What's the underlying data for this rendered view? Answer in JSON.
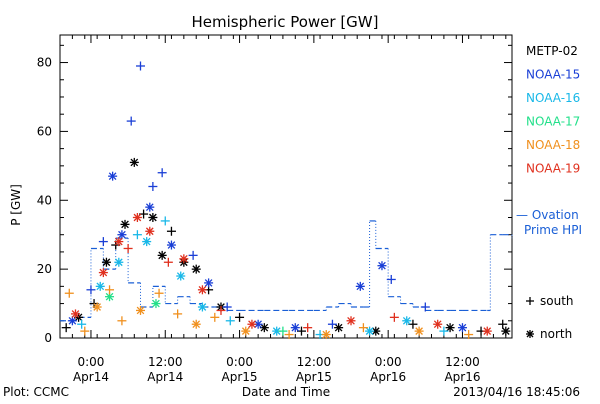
{
  "chart_data": {
    "type": "scatter",
    "title": "Hemispheric Power [GW]",
    "ylabel": "P [GW]",
    "xlabel": "Date and Time",
    "ylim": [
      0,
      88
    ],
    "y_ticks": [
      0,
      20,
      40,
      60,
      80
    ],
    "xlim": [
      "2013-04-13 19:00",
      "2013-04-16 20:00"
    ],
    "x_ticks": [
      {
        "x": "2013-04-14 00:00",
        "time": "0:00",
        "date": "Apr14"
      },
      {
        "x": "2013-04-14 12:00",
        "time": "12:00",
        "date": "Apr14"
      },
      {
        "x": "2013-04-15 00:00",
        "time": "0:00",
        "date": "Apr15"
      },
      {
        "x": "2013-04-15 12:00",
        "time": "12:00",
        "date": "Apr15"
      },
      {
        "x": "2013-04-16 00:00",
        "time": "0:00",
        "date": "Apr16"
      },
      {
        "x": "2013-04-16 12:00",
        "time": "12:00",
        "date": "Apr16"
      }
    ],
    "legend_position": "right",
    "series": [
      {
        "name": "METP-02",
        "color": "#000000",
        "points": [
          {
            "x": "2013-04-13 20:00",
            "y": 3,
            "m": "south"
          },
          {
            "x": "2013-04-13 22:00",
            "y": 6,
            "m": "north"
          },
          {
            "x": "2013-04-14 00:30",
            "y": 10,
            "m": "south"
          },
          {
            "x": "2013-04-14 02:30",
            "y": 22,
            "m": "north"
          },
          {
            "x": "2013-04-14 04:00",
            "y": 27,
            "m": "south"
          },
          {
            "x": "2013-04-14 05:30",
            "y": 33,
            "m": "north"
          },
          {
            "x": "2013-04-14 07:00",
            "y": 51,
            "m": "north"
          },
          {
            "x": "2013-04-14 08:30",
            "y": 36,
            "m": "south"
          },
          {
            "x": "2013-04-14 10:00",
            "y": 35,
            "m": "north"
          },
          {
            "x": "2013-04-14 11:30",
            "y": 24,
            "m": "north"
          },
          {
            "x": "2013-04-14 13:00",
            "y": 31,
            "m": "south"
          },
          {
            "x": "2013-04-14 15:00",
            "y": 22,
            "m": "north"
          },
          {
            "x": "2013-04-14 17:00",
            "y": 20,
            "m": "north"
          },
          {
            "x": "2013-04-14 19:00",
            "y": 14,
            "m": "south"
          },
          {
            "x": "2013-04-14 21:00",
            "y": 9,
            "m": "north"
          },
          {
            "x": "2013-04-15 00:00",
            "y": 6,
            "m": "south"
          },
          {
            "x": "2013-04-15 04:00",
            "y": 3,
            "m": "north"
          },
          {
            "x": "2013-04-15 10:00",
            "y": 2,
            "m": "south"
          },
          {
            "x": "2013-04-15 16:00",
            "y": 3,
            "m": "north"
          },
          {
            "x": "2013-04-15 22:00",
            "y": 2,
            "m": "north"
          },
          {
            "x": "2013-04-16 04:00",
            "y": 4,
            "m": "south"
          },
          {
            "x": "2013-04-16 10:00",
            "y": 3,
            "m": "north"
          },
          {
            "x": "2013-04-16 15:00",
            "y": 2,
            "m": "south"
          },
          {
            "x": "2013-04-16 18:30",
            "y": 4,
            "m": "south"
          },
          {
            "x": "2013-04-16 19:00",
            "y": 2,
            "m": "north"
          }
        ]
      },
      {
        "name": "NOAA-15",
        "color": "#1a3fd6",
        "points": [
          {
            "x": "2013-04-13 21:00",
            "y": 5,
            "m": "north"
          },
          {
            "x": "2013-04-14 00:00",
            "y": 14,
            "m": "south"
          },
          {
            "x": "2013-04-14 02:00",
            "y": 28,
            "m": "south"
          },
          {
            "x": "2013-04-14 03:30",
            "y": 47,
            "m": "north"
          },
          {
            "x": "2013-04-14 05:00",
            "y": 30,
            "m": "north"
          },
          {
            "x": "2013-04-14 06:30",
            "y": 63,
            "m": "south"
          },
          {
            "x": "2013-04-14 08:00",
            "y": 79,
            "m": "south"
          },
          {
            "x": "2013-04-14 10:00",
            "y": 44,
            "m": "south"
          },
          {
            "x": "2013-04-14 11:30",
            "y": 48,
            "m": "south"
          },
          {
            "x": "2013-04-14 09:30",
            "y": 38,
            "m": "north"
          },
          {
            "x": "2013-04-14 13:00",
            "y": 27,
            "m": "north"
          },
          {
            "x": "2013-04-14 16:30",
            "y": 24,
            "m": "south"
          },
          {
            "x": "2013-04-14 19:00",
            "y": 16,
            "m": "north"
          },
          {
            "x": "2013-04-14 22:00",
            "y": 9,
            "m": "south"
          },
          {
            "x": "2013-04-15 03:00",
            "y": 4,
            "m": "north"
          },
          {
            "x": "2013-04-15 09:00",
            "y": 3,
            "m": "north"
          },
          {
            "x": "2013-04-15 15:00",
            "y": 4,
            "m": "south"
          },
          {
            "x": "2013-04-15 19:30",
            "y": 15,
            "m": "north"
          },
          {
            "x": "2013-04-15 23:00",
            "y": 21,
            "m": "north"
          },
          {
            "x": "2013-04-16 00:30",
            "y": 17,
            "m": "south"
          },
          {
            "x": "2013-04-16 06:00",
            "y": 9,
            "m": "south"
          },
          {
            "x": "2013-04-16 12:00",
            "y": 3,
            "m": "north"
          }
        ]
      },
      {
        "name": "NOAA-16",
        "color": "#19b8e8",
        "points": [
          {
            "x": "2013-04-13 22:30",
            "y": 4,
            "m": "south"
          },
          {
            "x": "2013-04-14 01:30",
            "y": 15,
            "m": "north"
          },
          {
            "x": "2013-04-14 04:30",
            "y": 22,
            "m": "north"
          },
          {
            "x": "2013-04-14 07:30",
            "y": 30,
            "m": "south"
          },
          {
            "x": "2013-04-14 09:00",
            "y": 28,
            "m": "north"
          },
          {
            "x": "2013-04-14 12:00",
            "y": 34,
            "m": "south"
          },
          {
            "x": "2013-04-14 14:30",
            "y": 18,
            "m": "north"
          },
          {
            "x": "2013-04-14 18:00",
            "y": 9,
            "m": "north"
          },
          {
            "x": "2013-04-14 22:30",
            "y": 5,
            "m": "south"
          },
          {
            "x": "2013-04-15 06:00",
            "y": 2,
            "m": "north"
          },
          {
            "x": "2013-04-15 13:00",
            "y": 1,
            "m": "south"
          },
          {
            "x": "2013-04-15 21:00",
            "y": 2,
            "m": "north"
          },
          {
            "x": "2013-04-16 03:00",
            "y": 5,
            "m": "north"
          },
          {
            "x": "2013-04-16 09:00",
            "y": 2,
            "m": "south"
          }
        ]
      },
      {
        "name": "NOAA-17",
        "color": "#22e08a",
        "points": [
          {
            "x": "2013-04-14 03:00",
            "y": 12,
            "m": "north"
          },
          {
            "x": "2013-04-14 10:30",
            "y": 10,
            "m": "north"
          },
          {
            "x": "2013-04-15 07:00",
            "y": 2,
            "m": "south"
          }
        ]
      },
      {
        "name": "NOAA-18",
        "color": "#f0901e",
        "points": [
          {
            "x": "2013-04-13 20:30",
            "y": 13,
            "m": "south"
          },
          {
            "x": "2013-04-13 23:00",
            "y": 2,
            "m": "south"
          },
          {
            "x": "2013-04-14 01:00",
            "y": 9,
            "m": "north"
          },
          {
            "x": "2013-04-14 03:00",
            "y": 14,
            "m": "south"
          },
          {
            "x": "2013-04-14 05:00",
            "y": 5,
            "m": "south"
          },
          {
            "x": "2013-04-14 08:00",
            "y": 8,
            "m": "north"
          },
          {
            "x": "2013-04-14 11:00",
            "y": 13,
            "m": "south"
          },
          {
            "x": "2013-04-14 14:00",
            "y": 7,
            "m": "south"
          },
          {
            "x": "2013-04-14 17:00",
            "y": 4,
            "m": "north"
          },
          {
            "x": "2013-04-14 20:00",
            "y": 6,
            "m": "south"
          },
          {
            "x": "2013-04-15 01:00",
            "y": 2,
            "m": "north"
          },
          {
            "x": "2013-04-15 08:00",
            "y": 1,
            "m": "south"
          },
          {
            "x": "2013-04-15 14:00",
            "y": 1,
            "m": "north"
          },
          {
            "x": "2013-04-15 20:00",
            "y": 3,
            "m": "south"
          },
          {
            "x": "2013-04-16 05:00",
            "y": 2,
            "m": "north"
          },
          {
            "x": "2013-04-16 13:00",
            "y": 1,
            "m": "south"
          }
        ]
      },
      {
        "name": "NOAA-19",
        "color": "#e0301e",
        "points": [
          {
            "x": "2013-04-13 21:30",
            "y": 7,
            "m": "north"
          },
          {
            "x": "2013-04-14 02:00",
            "y": 19,
            "m": "north"
          },
          {
            "x": "2013-04-14 04:30",
            "y": 28,
            "m": "north"
          },
          {
            "x": "2013-04-14 06:00",
            "y": 26,
            "m": "south"
          },
          {
            "x": "2013-04-14 07:30",
            "y": 35,
            "m": "north"
          },
          {
            "x": "2013-04-14 09:30",
            "y": 31,
            "m": "north"
          },
          {
            "x": "2013-04-14 12:30",
            "y": 22,
            "m": "south"
          },
          {
            "x": "2013-04-14 15:00",
            "y": 23,
            "m": "north"
          },
          {
            "x": "2013-04-14 18:00",
            "y": 14,
            "m": "north"
          },
          {
            "x": "2013-04-14 21:00",
            "y": 8,
            "m": "south"
          },
          {
            "x": "2013-04-15 02:00",
            "y": 4,
            "m": "north"
          },
          {
            "x": "2013-04-15 11:00",
            "y": 3,
            "m": "south"
          },
          {
            "x": "2013-04-15 18:00",
            "y": 5,
            "m": "north"
          },
          {
            "x": "2013-04-16 01:00",
            "y": 6,
            "m": "south"
          },
          {
            "x": "2013-04-16 08:00",
            "y": 4,
            "m": "north"
          },
          {
            "x": "2013-04-16 16:00",
            "y": 2,
            "m": "north"
          }
        ]
      }
    ],
    "ovation": {
      "name": "Ovation Prime HPI",
      "legend_line1": "— Ovation",
      "legend_line2": "Prime HPI",
      "color": "#1a5fd6",
      "points": [
        {
          "x": "2013-04-13 19:00",
          "y": 5
        },
        {
          "x": "2013-04-13 22:00",
          "y": 6
        },
        {
          "x": "2013-04-14 00:00",
          "y": 26
        },
        {
          "x": "2013-04-14 02:00",
          "y": 20
        },
        {
          "x": "2013-04-14 04:00",
          "y": 29
        },
        {
          "x": "2013-04-14 06:00",
          "y": 16
        },
        {
          "x": "2013-04-14 08:00",
          "y": 9
        },
        {
          "x": "2013-04-14 10:00",
          "y": 15
        },
        {
          "x": "2013-04-14 12:00",
          "y": 10
        },
        {
          "x": "2013-04-14 14:00",
          "y": 12
        },
        {
          "x": "2013-04-14 16:00",
          "y": 10
        },
        {
          "x": "2013-04-14 18:00",
          "y": 9
        },
        {
          "x": "2013-04-14 20:00",
          "y": 9
        },
        {
          "x": "2013-04-14 22:00",
          "y": 8
        },
        {
          "x": "2013-04-15 00:00",
          "y": 8
        },
        {
          "x": "2013-04-15 04:00",
          "y": 8
        },
        {
          "x": "2013-04-15 08:00",
          "y": 8
        },
        {
          "x": "2013-04-15 12:00",
          "y": 8
        },
        {
          "x": "2013-04-15 14:00",
          "y": 9
        },
        {
          "x": "2013-04-15 16:00",
          "y": 10
        },
        {
          "x": "2013-04-15 18:00",
          "y": 9
        },
        {
          "x": "2013-04-15 20:00",
          "y": 9
        },
        {
          "x": "2013-04-15 21:00",
          "y": 34
        },
        {
          "x": "2013-04-15 22:00",
          "y": 26
        },
        {
          "x": "2013-04-16 00:00",
          "y": 12
        },
        {
          "x": "2013-04-16 02:00",
          "y": 10
        },
        {
          "x": "2013-04-16 04:00",
          "y": 9
        },
        {
          "x": "2013-04-16 06:00",
          "y": 8
        },
        {
          "x": "2013-04-16 08:00",
          "y": 8
        },
        {
          "x": "2013-04-16 10:00",
          "y": 8
        },
        {
          "x": "2013-04-16 12:00",
          "y": 8
        },
        {
          "x": "2013-04-16 16:00",
          "y": 8
        },
        {
          "x": "2013-04-16 16:30",
          "y": 30
        },
        {
          "x": "2013-04-16 18:30",
          "y": 30
        },
        {
          "x": "2013-04-16 20:00",
          "y": 29
        }
      ]
    },
    "marker_legend": [
      {
        "symbol": "+",
        "label": "south"
      },
      {
        "symbol": "*",
        "label": "north"
      }
    ],
    "footer": {
      "plot_credit": "Plot: CCMC",
      "timestamp": "2013/04/16 18:45:06"
    }
  }
}
